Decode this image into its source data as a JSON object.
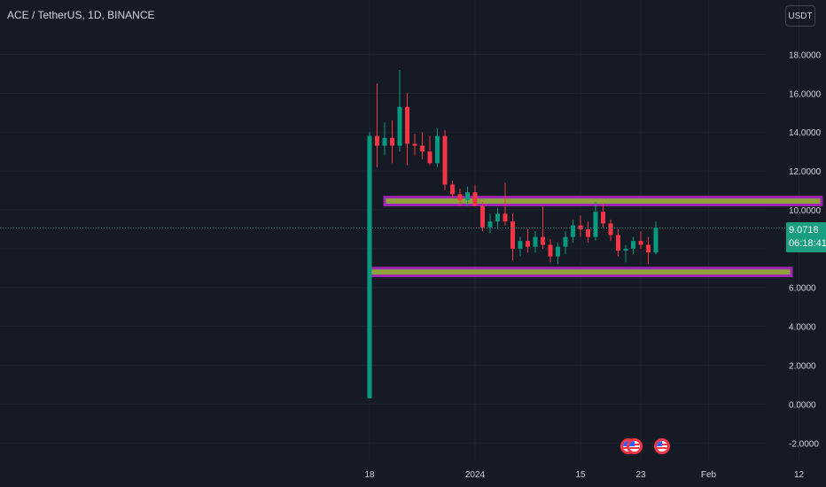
{
  "header": {
    "symbol_title": "ACE / TetherUS, 1D, BINANCE",
    "currency_button": "USDT"
  },
  "price_label": {
    "price": "9.0718",
    "countdown": "06:18:41"
  },
  "colors": {
    "background": "#161a25",
    "grid": "#1f232e",
    "up": "#089981",
    "down": "#f23645",
    "zone_fill": "#8fa23a",
    "zone_border": "#9c27b0",
    "axis_text": "#d1d4dc",
    "price_line": "#089981"
  },
  "event_icons": [
    "us-flag-icon",
    "us-flag-icon",
    "us-flag-icon"
  ],
  "chart_data": {
    "type": "candlestick",
    "title": "ACE / TetherUS, 1D, BINANCE",
    "ylim": [
      -2.9,
      20.8
    ],
    "y_ticks": [
      "18.0000",
      "16.0000",
      "14.0000",
      "12.0000",
      "10.0000",
      "8.0000",
      "6.0000",
      "4.0000",
      "2.0000",
      "0.0000",
      "-2.0000"
    ],
    "x_ticks": [
      "18",
      "2024",
      "15",
      "23",
      "Feb",
      "12"
    ],
    "x_tick_days": [
      0,
      14,
      28,
      36,
      45,
      57
    ],
    "grid": true,
    "last_price": 9.0718,
    "candles": [
      {
        "day": 0,
        "open": 0.3,
        "high": 14.0,
        "low": 0.3,
        "close": 13.8
      },
      {
        "day": 1,
        "open": 13.8,
        "high": 16.5,
        "low": 12.2,
        "close": 13.3
      },
      {
        "day": 2,
        "open": 13.3,
        "high": 14.5,
        "low": 12.8,
        "close": 13.7
      },
      {
        "day": 3,
        "open": 13.7,
        "high": 14.6,
        "low": 12.4,
        "close": 13.3
      },
      {
        "day": 4,
        "open": 13.3,
        "high": 17.2,
        "low": 13.0,
        "close": 15.3
      },
      {
        "day": 5,
        "open": 15.3,
        "high": 16.0,
        "low": 12.3,
        "close": 13.4
      },
      {
        "day": 6,
        "open": 13.4,
        "high": 13.9,
        "low": 12.8,
        "close": 13.3
      },
      {
        "day": 7,
        "open": 13.3,
        "high": 14.0,
        "low": 12.6,
        "close": 13.0
      },
      {
        "day": 8,
        "open": 13.0,
        "high": 13.8,
        "low": 12.3,
        "close": 12.4
      },
      {
        "day": 9,
        "open": 12.4,
        "high": 14.2,
        "low": 12.2,
        "close": 13.8
      },
      {
        "day": 10,
        "open": 13.8,
        "high": 14.1,
        "low": 11.0,
        "close": 11.3
      },
      {
        "day": 11,
        "open": 11.3,
        "high": 11.5,
        "low": 10.6,
        "close": 10.8
      },
      {
        "day": 12,
        "open": 10.8,
        "high": 11.1,
        "low": 10.2,
        "close": 10.5
      },
      {
        "day": 13,
        "open": 10.5,
        "high": 11.2,
        "low": 10.2,
        "close": 10.9
      },
      {
        "day": 14,
        "open": 10.9,
        "high": 11.3,
        "low": 10.3,
        "close": 10.2
      },
      {
        "day": 15,
        "open": 10.2,
        "high": 10.4,
        "low": 8.9,
        "close": 9.1
      },
      {
        "day": 16,
        "open": 9.1,
        "high": 9.8,
        "low": 8.8,
        "close": 9.4
      },
      {
        "day": 17,
        "open": 9.4,
        "high": 10.1,
        "low": 9.0,
        "close": 9.8
      },
      {
        "day": 18,
        "open": 9.8,
        "high": 11.4,
        "low": 9.2,
        "close": 9.4
      },
      {
        "day": 19,
        "open": 9.4,
        "high": 9.8,
        "low": 7.4,
        "close": 8.0
      },
      {
        "day": 20,
        "open": 8.0,
        "high": 8.6,
        "low": 7.6,
        "close": 8.4
      },
      {
        "day": 21,
        "open": 8.4,
        "high": 9.0,
        "low": 7.8,
        "close": 8.1
      },
      {
        "day": 22,
        "open": 8.1,
        "high": 8.9,
        "low": 7.8,
        "close": 8.6
      },
      {
        "day": 23,
        "open": 8.6,
        "high": 10.2,
        "low": 8.0,
        "close": 8.2
      },
      {
        "day": 24,
        "open": 8.2,
        "high": 8.5,
        "low": 7.3,
        "close": 7.6
      },
      {
        "day": 25,
        "open": 7.6,
        "high": 8.3,
        "low": 7.2,
        "close": 8.1
      },
      {
        "day": 26,
        "open": 8.1,
        "high": 8.9,
        "low": 7.7,
        "close": 8.6
      },
      {
        "day": 27,
        "open": 8.6,
        "high": 9.5,
        "low": 8.3,
        "close": 9.2
      },
      {
        "day": 28,
        "open": 9.2,
        "high": 9.7,
        "low": 8.6,
        "close": 9.0
      },
      {
        "day": 29,
        "open": 9.0,
        "high": 9.4,
        "low": 8.3,
        "close": 8.6
      },
      {
        "day": 30,
        "open": 8.6,
        "high": 10.4,
        "low": 8.4,
        "close": 9.9
      },
      {
        "day": 31,
        "open": 9.9,
        "high": 10.3,
        "low": 9.1,
        "close": 9.3
      },
      {
        "day": 32,
        "open": 9.3,
        "high": 9.5,
        "low": 8.4,
        "close": 8.7
      },
      {
        "day": 33,
        "open": 8.7,
        "high": 9.0,
        "low": 7.6,
        "close": 7.9
      },
      {
        "day": 34,
        "open": 7.9,
        "high": 8.2,
        "low": 7.3,
        "close": 8.0
      },
      {
        "day": 35,
        "open": 8.0,
        "high": 8.6,
        "low": 7.7,
        "close": 8.4
      },
      {
        "day": 36,
        "open": 8.4,
        "high": 8.9,
        "low": 8.0,
        "close": 8.2
      },
      {
        "day": 37,
        "open": 8.2,
        "high": 8.6,
        "low": 7.2,
        "close": 7.8
      },
      {
        "day": 38,
        "open": 7.8,
        "high": 9.4,
        "low": 7.7,
        "close": 9.07
      }
    ],
    "zones": [
      {
        "start_day": 2,
        "end_day": 60,
        "high": 10.65,
        "low": 10.25
      },
      {
        "start_day": 0,
        "end_day": 56,
        "high": 7.0,
        "low": 6.6
      }
    ]
  }
}
